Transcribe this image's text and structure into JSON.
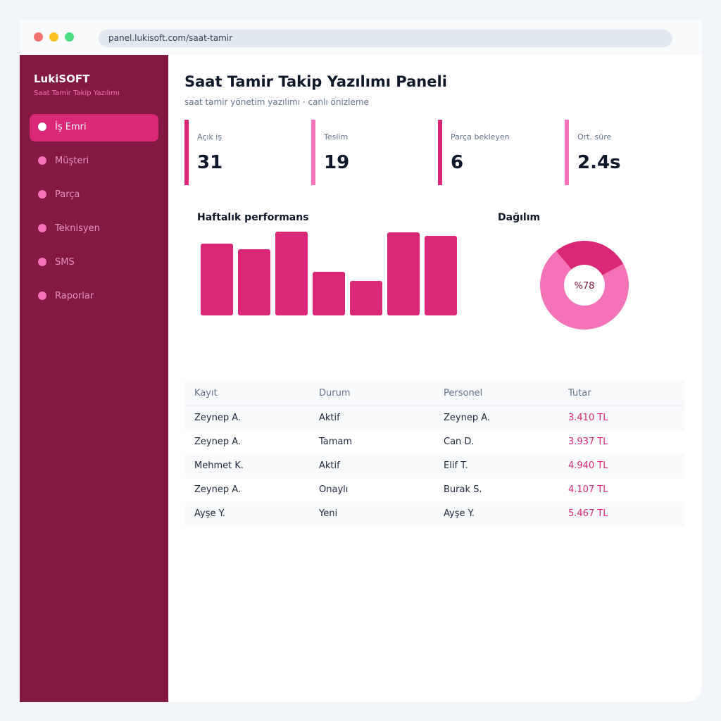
{
  "browser": {
    "url": "panel.lukisoft.com/saat-tamir"
  },
  "sidebar": {
    "brand": "LukiSOFT",
    "subtitle": "Saat Tamir Takip Yazılımı",
    "items": [
      {
        "label": "İş Emri",
        "active": true
      },
      {
        "label": "Müşteri",
        "active": false
      },
      {
        "label": "Parça",
        "active": false
      },
      {
        "label": "Teknisyen",
        "active": false
      },
      {
        "label": "SMS",
        "active": false
      },
      {
        "label": "Raporlar",
        "active": false
      }
    ]
  },
  "header": {
    "title": "Saat Tamir Takip Yazılımı Paneli",
    "subtitle": "saat tamir yönetim yazılımı · canlı önizleme"
  },
  "kpis": [
    {
      "label": "Açık iş",
      "value": "31",
      "color": "#db2777"
    },
    {
      "label": "Teslim",
      "value": "19",
      "color": "#f472b6"
    },
    {
      "label": "Parça bekleyen",
      "value": "6",
      "color": "#db2777"
    },
    {
      "label": "Ort. süre",
      "value": "2.4s",
      "color": "#f472b6"
    }
  ],
  "performance": {
    "title": "Haftalık performans"
  },
  "distribution": {
    "title": "Dağılım",
    "center_label": "%78"
  },
  "chart_data": [
    {
      "type": "bar",
      "title": "Haftalık performans",
      "values": [
        102,
        94,
        119,
        62,
        49,
        118,
        113
      ],
      "ylim": [
        0,
        120
      ],
      "color": "#db2777"
    },
    {
      "type": "pie",
      "title": "Dağılım",
      "values": [
        28,
        72
      ],
      "colors": [
        "#db2777",
        "#f472b6"
      ],
      "center_label": "%78"
    }
  ],
  "table": {
    "headers": [
      "Kayıt",
      "Durum",
      "Personel",
      "Tutar"
    ],
    "rows": [
      [
        "Zeynep A.",
        "Aktif",
        "Zeynep A.",
        "3.410 TL"
      ],
      [
        "Zeynep A.",
        "Tamam",
        "Can D.",
        "3.937 TL"
      ],
      [
        "Mehmet K.",
        "Aktif",
        "Elif T.",
        "4.940 TL"
      ],
      [
        "Zeynep A.",
        "Onaylı",
        "Burak S.",
        "4.107 TL"
      ],
      [
        "Ayşe Y.",
        "Yeni",
        "Ayşe Y.",
        "5.467 TL"
      ]
    ]
  },
  "colors": {
    "sidebar_bg": "#831843",
    "accent": "#db2777",
    "accent_light": "#f472b6"
  }
}
